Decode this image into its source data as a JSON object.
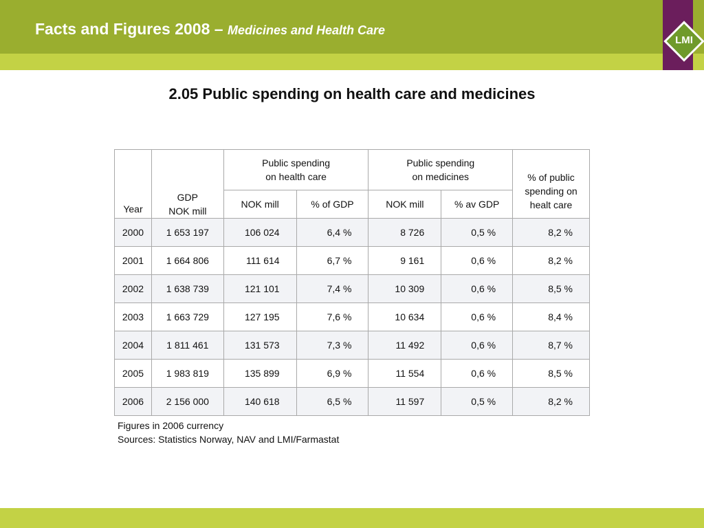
{
  "header": {
    "title_main": "Facts and Figures 2008 –",
    "title_sub": "Medicines and Health Care"
  },
  "logo": {
    "text": "LMI"
  },
  "slide": {
    "title": "2.05 Public spending on health care and medicines"
  },
  "table": {
    "headers": {
      "year": "Year",
      "gdp_line1": "GDP",
      "gdp_line2": "NOK mill",
      "health_line1": "Public spending",
      "health_line2": "on health care",
      "medicines_line1": "Public spending",
      "medicines_line2": "on medicines",
      "share_line1": "% of public",
      "share_line2": "spending on",
      "share_line3": "healt care",
      "health_nok": "NOK mill",
      "health_pct": "% of GDP",
      "med_nok": "NOK mill",
      "med_pct": "% av GDP"
    },
    "rows": [
      [
        "2000",
        "1 653 197",
        "106 024",
        "6,4 %",
        "8 726",
        "0,5 %",
        "8,2 %"
      ],
      [
        "2001",
        "1 664 806",
        "111 614",
        "6,7 %",
        "9 161",
        "0,6 %",
        "8,2 %"
      ],
      [
        "2002",
        "1 638 739",
        "121 101",
        "7,4 %",
        "10 309",
        "0,6 %",
        "8,5 %"
      ],
      [
        "2003",
        "1 663 729",
        "127 195",
        "7,6 %",
        "10 634",
        "0,6 %",
        "8,4 %"
      ],
      [
        "2004",
        "1 811 461",
        "131 573",
        "7,3 %",
        "11 492",
        "0,6 %",
        "8,7 %"
      ],
      [
        "2005",
        "1 983 819",
        "135 899",
        "6,9 %",
        "11 554",
        "0,6 %",
        "8,5 %"
      ],
      [
        "2006",
        "2 156 000",
        "140 618",
        "6,5 %",
        "11 597",
        "0,5 %",
        "8,2 %"
      ]
    ]
  },
  "notes": {
    "line1": "Figures in 2006 currency",
    "line2": "Sources: Statistics Norway, NAV and LMI/Farmastat"
  },
  "colors": {
    "header_green": "#9aae2f",
    "light_green": "#c3d245",
    "logo_purple": "#6b1e5c",
    "logo_green": "#6f9a2b"
  }
}
